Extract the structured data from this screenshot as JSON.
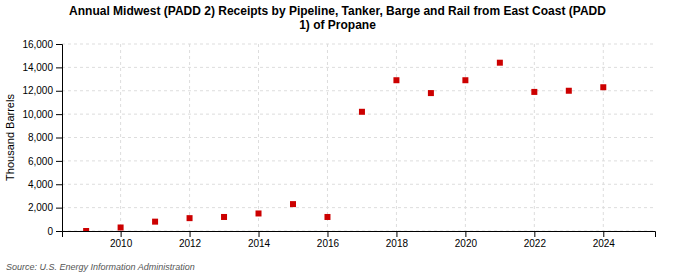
{
  "chart_data": {
    "type": "scatter",
    "title": "Annual Midwest (PADD 2) Receipts by Pipeline, Tanker, Barge and Rail from East Coast (PADD\n1) of Propane",
    "ylabel": "Thousand Barrels",
    "annotations": [
      "Source: U.S. Energy Information Administration"
    ],
    "x": [
      2009,
      2010,
      2011,
      2012,
      2013,
      2014,
      2015,
      2016,
      2017,
      2018,
      2019,
      2020,
      2021,
      2022,
      2023,
      2024
    ],
    "values": [
      0,
      300,
      800,
      1100,
      1200,
      1500,
      2300,
      1200,
      10200,
      12900,
      11800,
      12900,
      14400,
      11900,
      12000,
      12300
    ],
    "color": "#cc0000",
    "marker": "square",
    "xlim": [
      2008.3,
      2025.5
    ],
    "xticks": [
      2010,
      2012,
      2014,
      2016,
      2018,
      2020,
      2022,
      2024
    ],
    "ylim": [
      0,
      16000
    ],
    "yticks": [
      0,
      {
        "value": 2000,
        "label": "2,000"
      },
      {
        "value": 4000,
        "label": "4,000"
      },
      {
        "value": 6000,
        "label": "6,000"
      },
      {
        "value": 8000,
        "label": "8,000"
      },
      {
        "value": 10000,
        "label": "10,000"
      },
      {
        "value": 12000,
        "label": "12,000"
      },
      {
        "value": 14000,
        "label": "14,000"
      },
      {
        "value": 16000,
        "label": "16,000"
      }
    ],
    "grid": true
  }
}
